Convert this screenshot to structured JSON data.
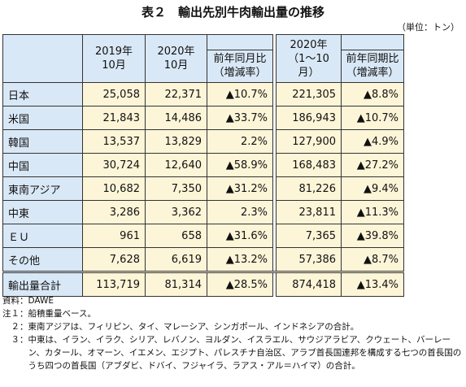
{
  "header": {
    "title": "表２　輸出先別牛肉輸出量の推移",
    "unit": "（単位：トン）"
  },
  "table": {
    "columns": [
      "2019年\n10月",
      "2020年\n10月",
      "前年同月比\n（増減率）",
      "2020年\n（1～10月）",
      "前年同期比\n（増減率）"
    ],
    "rows": [
      [
        "日本",
        "25,058",
        "22,371",
        "▲10.7%",
        "221,305",
        "▲8.8%"
      ],
      [
        "米国",
        "21,843",
        "14,486",
        "▲33.7%",
        "186,943",
        "▲10.7%"
      ],
      [
        "韓国",
        "13,537",
        "13,829",
        "2.2%",
        "127,900",
        "▲4.9%"
      ],
      [
        "中国",
        "30,724",
        "12,640",
        "▲58.9%",
        "168,483",
        "▲27.2%"
      ],
      [
        "東南アジア",
        "10,682",
        "7,350",
        "▲31.2%",
        "81,226",
        "▲9.4%"
      ],
      [
        "中東",
        "3,286",
        "3,362",
        "2.3%",
        "23,811",
        "▲11.3%"
      ],
      [
        "ＥＵ",
        "961",
        "658",
        "▲31.6%",
        "7,365",
        "▲39.8%"
      ],
      [
        "その他",
        "7,628",
        "6,619",
        "▲13.2%",
        "57,386",
        "▲8.7%"
      ]
    ],
    "total": [
      "輸出量合計",
      "113,719",
      "81,314",
      "▲28.5%",
      "874,418",
      "▲13.4%"
    ]
  },
  "notes": [
    {
      "label": "資料：",
      "text": "DAWE"
    },
    {
      "label": "注１：",
      "text": "船積重量ベース。"
    },
    {
      "label": "　２：",
      "text": "東南アジアは、フィリピン、タイ、マレーシア、シンガポール、インドネシアの合計。"
    },
    {
      "label": "　３：",
      "text": "中東は、イラン、イラク、シリア、レバノン、ヨルダン、イスラエル、サウジアラビア、クウェート、バーレーン、カタール、オマーン、イエメン、エジプト、パレスチナ自治区、アラブ首長国連邦を構成する七つの首長国のうち四つの首長国（アブダビ、ドバイ、フジャイラ、ラアス・アル＝ハイマ）の合計。"
    }
  ]
}
